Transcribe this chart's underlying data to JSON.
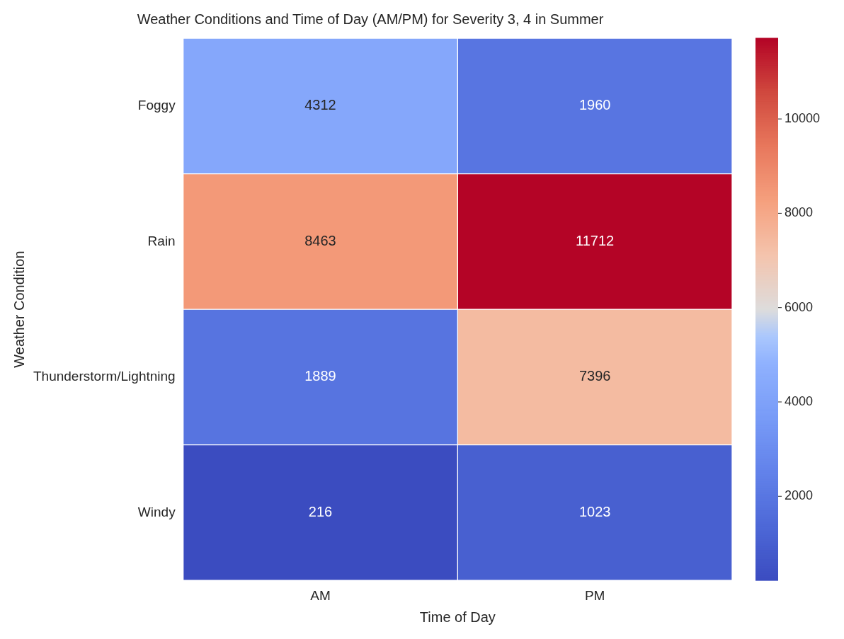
{
  "chart_data": {
    "type": "heatmap",
    "title": "Weather Conditions and Time of Day (AM/PM) for Severity 3, 4 in Summer",
    "xlabel": "Time of Day",
    "ylabel": "Weather Condition",
    "categories": [
      "AM",
      "PM"
    ],
    "y_categories": [
      "Foggy",
      "Rain",
      "Thunderstorm/Lightning",
      "Windy"
    ],
    "cells": [
      [
        4312,
        1960
      ],
      [
        8463,
        11712
      ],
      [
        1889,
        7396
      ],
      [
        216,
        1023
      ]
    ],
    "clim": [
      216,
      11712
    ],
    "cticks": [
      2000,
      4000,
      6000,
      8000,
      10000
    ],
    "data_labels": true
  }
}
